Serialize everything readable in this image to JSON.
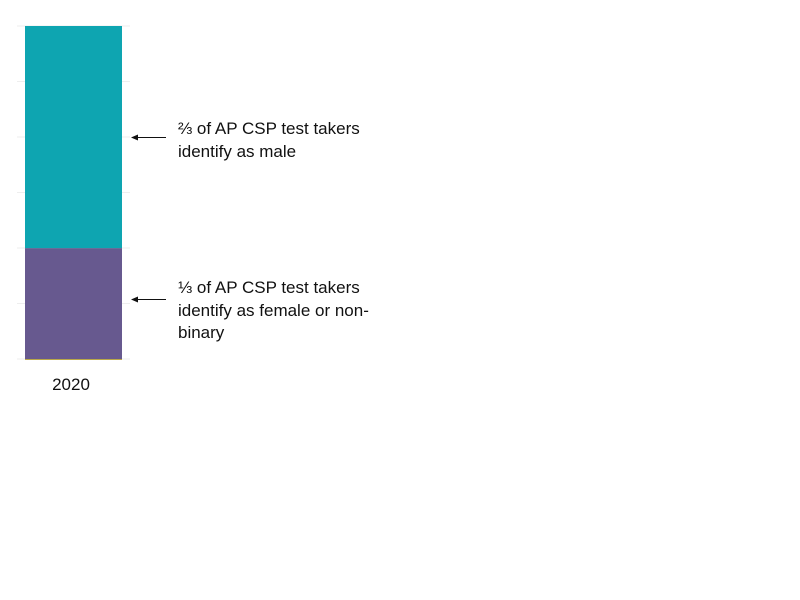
{
  "chart_data": {
    "type": "bar",
    "stacked": true,
    "categories": [
      "2020"
    ],
    "series": [
      {
        "values": [
          0.333
        ],
        "color": "#67598f"
      },
      {
        "values": [
          0.667
        ],
        "color": "#0ea5b1"
      }
    ],
    "ylim": [
      0,
      1
    ],
    "grid": true,
    "annotations": [
      {
        "text": "⅔ of AP CSP test takers identify as male"
      },
      {
        "text": "⅓ of AP CSP test takers identify as female or non-binary"
      }
    ]
  }
}
